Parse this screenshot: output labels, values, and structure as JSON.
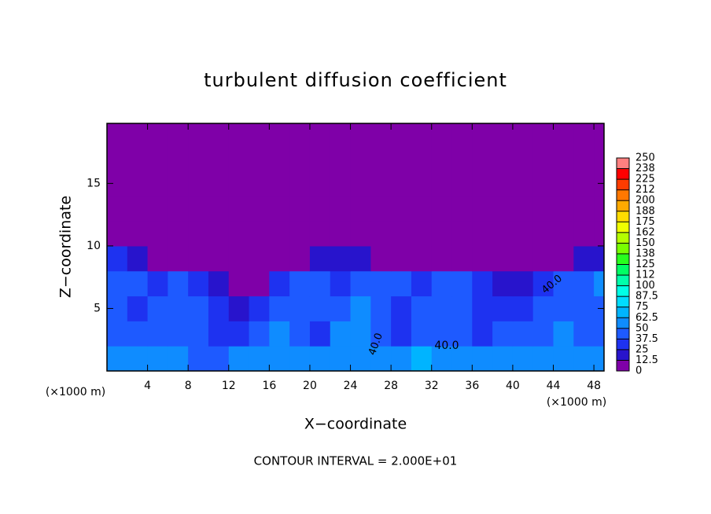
{
  "chart_data": {
    "type": "heatmap",
    "title": "turbulent diffusion coefficient",
    "x_label": "X−coordinate",
    "y_label": "Z−coordinate",
    "x_unit_labels": [
      "(×1000 m)",
      "(×1000 m)"
    ],
    "footer": "CONTOUR INTERVAL = 2.000E+01",
    "contour_labels": [
      "40.0",
      "40.0",
      "40.0"
    ],
    "xlim": [
      0,
      49
    ],
    "ylim": [
      0,
      19.8
    ],
    "xticks": [
      4,
      8,
      12,
      16,
      20,
      24,
      28,
      32,
      36,
      40,
      44,
      48
    ],
    "yticks": [
      5,
      10,
      15
    ],
    "x": [
      1,
      3,
      5,
      7,
      9,
      11,
      13,
      15,
      17,
      19,
      21,
      23,
      25,
      27,
      29,
      31,
      33,
      35,
      37,
      39,
      41,
      43,
      45,
      47,
      49
    ],
    "y": [
      1,
      3,
      5,
      7,
      9,
      11,
      13,
      15,
      17,
      19
    ],
    "cell_size": 2,
    "values": [
      [
        60,
        55,
        50,
        55,
        45,
        40,
        55,
        60,
        50,
        55,
        60,
        55,
        50,
        55,
        60,
        65,
        60,
        55,
        50,
        55,
        60,
        55,
        50,
        60,
        55
      ],
      [
        45,
        40,
        40,
        45,
        40,
        35,
        30,
        45,
        50,
        45,
        35,
        50,
        55,
        45,
        35,
        45,
        45,
        40,
        35,
        45,
        40,
        45,
        50,
        45,
        40
      ],
      [
        40,
        35,
        40,
        45,
        45,
        30,
        20,
        35,
        45,
        40,
        40,
        45,
        50,
        40,
        35,
        40,
        40,
        45,
        30,
        25,
        35,
        45,
        45,
        40,
        45
      ],
      [
        45,
        40,
        35,
        40,
        30,
        15,
        10,
        10,
        30,
        40,
        40,
        35,
        45,
        40,
        40,
        35,
        40,
        40,
        35,
        20,
        15,
        25,
        45,
        45,
        50
      ],
      [
        25,
        20,
        10,
        5,
        3,
        2,
        2,
        3,
        5,
        8,
        15,
        20,
        15,
        8,
        5,
        10,
        8,
        5,
        5,
        5,
        5,
        5,
        10,
        15,
        15
      ],
      [
        0,
        0,
        0,
        0,
        0,
        0,
        0,
        0,
        0,
        0,
        0,
        0,
        0,
        0,
        0,
        0,
        0,
        0,
        0,
        0,
        0,
        0,
        0,
        0,
        0
      ],
      [
        0,
        0,
        0,
        0,
        0,
        0,
        0,
        0,
        0,
        0,
        0,
        0,
        0,
        0,
        0,
        0,
        0,
        0,
        0,
        0,
        0,
        0,
        0,
        0,
        0
      ],
      [
        0,
        0,
        0,
        0,
        0,
        0,
        0,
        0,
        0,
        0,
        0,
        0,
        0,
        0,
        0,
        0,
        0,
        0,
        0,
        0,
        0,
        0,
        0,
        0,
        0
      ],
      [
        0,
        0,
        0,
        0,
        0,
        0,
        0,
        0,
        0,
        0,
        0,
        0,
        0,
        0,
        0,
        0,
        0,
        0,
        0,
        0,
        0,
        0,
        0,
        0,
        0
      ],
      [
        0,
        0,
        0,
        0,
        0,
        0,
        0,
        0,
        0,
        0,
        0,
        0,
        0,
        0,
        0,
        0,
        0,
        0,
        0,
        0,
        0,
        0,
        0,
        0,
        0
      ]
    ],
    "colorbar": {
      "levels": [
        0,
        12.5,
        25,
        37.5,
        50,
        62.5,
        75,
        87.5,
        100,
        {
          "value": 112.5,
          "label": "112"
        },
        125,
        {
          "value": 137.5,
          "label": "138"
        },
        150,
        {
          "value": 162.5,
          "label": "162"
        },
        175,
        {
          "value": 187.5,
          "label": "188"
        },
        200,
        {
          "value": 212.5,
          "label": "212"
        },
        225,
        {
          "value": 237.5,
          "label": "238"
        },
        250
      ],
      "colors": [
        "#7f00a8",
        "#2814cc",
        "#1e32f0",
        "#1e5aff",
        "#0f8cff",
        "#00b4ff",
        "#00dcff",
        "#00ffe6",
        "#00ffaa",
        "#00ff64",
        "#28ff1e",
        "#78ff00",
        "#b4ff00",
        "#f0ff00",
        "#ffdc00",
        "#ffaa00",
        "#ff7800",
        "#ff3c00",
        "#ff0000",
        "#ff8080"
      ]
    }
  }
}
